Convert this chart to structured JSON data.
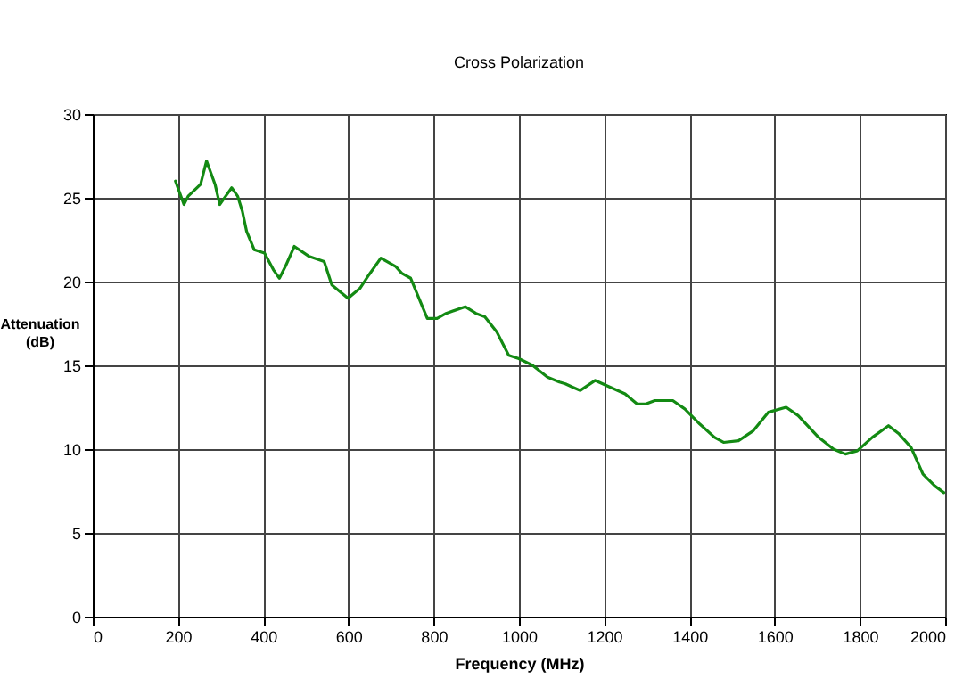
{
  "chart_data": {
    "type": "line",
    "title": "Cross Polarization",
    "xlabel": "Frequency (MHz)",
    "ylabel": "Attenuation (dB)",
    "xlim": [
      0,
      2000
    ],
    "xticks": [
      0,
      200,
      400,
      600,
      800,
      1000,
      1200,
      1400,
      1600,
      1800,
      2000
    ],
    "ylim": [
      0,
      30
    ],
    "yticks": [
      0,
      5,
      10,
      15,
      20,
      25,
      30
    ],
    "grid": true,
    "series": [
      {
        "color": "#138a13",
        "x": [
          194,
          214,
          224,
          253,
          267,
          277,
          287,
          298,
          312,
          326,
          340,
          351,
          361,
          379,
          403,
          424,
          438,
          452,
          473,
          508,
          543,
          561,
          599,
          627,
          648,
          676,
          711,
          725,
          746,
          767,
          785,
          808,
          829,
          874,
          899,
          920,
          948,
          976,
          1000,
          1032,
          1067,
          1095,
          1109,
          1126,
          1144,
          1179,
          1214,
          1249,
          1277,
          1298,
          1319,
          1361,
          1389,
          1424,
          1459,
          1480,
          1515,
          1550,
          1585,
          1627,
          1655,
          1703,
          1738,
          1766,
          1794,
          1829,
          1867,
          1892,
          1920,
          1948,
          1976,
          1997
        ],
        "values": [
          26.0,
          24.6,
          25.1,
          25.8,
          27.2,
          26.5,
          25.8,
          24.6,
          25.1,
          25.6,
          25.1,
          24.2,
          23.0,
          21.9,
          21.7,
          20.7,
          20.2,
          20.9,
          22.1,
          21.5,
          21.2,
          19.8,
          19.0,
          19.6,
          20.4,
          21.4,
          20.9,
          20.5,
          20.2,
          18.9,
          17.8,
          17.8,
          18.1,
          18.5,
          18.1,
          17.9,
          17.0,
          15.6,
          15.4,
          15.0,
          14.3,
          14.0,
          13.9,
          13.7,
          13.5,
          14.1,
          13.7,
          13.3,
          12.7,
          12.7,
          12.9,
          12.9,
          12.4,
          11.5,
          10.7,
          10.4,
          10.5,
          11.1,
          12.2,
          12.5,
          12.0,
          10.7,
          10.0,
          9.7,
          9.9,
          10.7,
          11.4,
          10.9,
          10.1,
          8.5,
          7.8,
          7.4
        ]
      }
    ]
  }
}
